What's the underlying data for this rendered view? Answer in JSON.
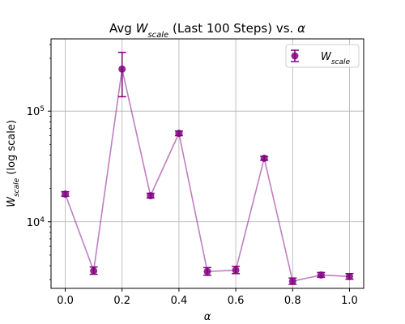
{
  "chart_data": {
    "type": "line",
    "title": "Avg W_scale (Last 100 Steps) vs. α",
    "title_parts": {
      "prefix": "Avg ",
      "var": "W",
      "sub": "scale",
      "suffix": " (Last 100 Steps) vs. ",
      "alpha": "α"
    },
    "xlabel": "α",
    "ylabel_parts": {
      "var": "W",
      "sub": "scale",
      "suffix": " (log scale)"
    },
    "y_scale": "log",
    "xlim": [
      -0.05,
      1.05
    ],
    "ylim": [
      2500,
      450000
    ],
    "x_ticks": [
      0.0,
      0.2,
      0.4,
      0.6,
      0.8,
      1.0
    ],
    "x_tick_labels": [
      "0.0",
      "0.2",
      "0.4",
      "0.6",
      "0.8",
      "1.0"
    ],
    "y_ticks": [
      10000,
      100000
    ],
    "y_tick_labels": [
      {
        "base": "10",
        "exp": "4"
      },
      {
        "base": "10",
        "exp": "5"
      }
    ],
    "grid": true,
    "legend": {
      "position": "top-right",
      "label_var": "W",
      "label_sub": "scale"
    },
    "series": [
      {
        "name": "W_scale",
        "color": "#800080",
        "x": [
          0.0,
          0.1,
          0.2,
          0.3,
          0.4,
          0.5,
          0.6,
          0.7,
          0.8,
          0.9,
          1.0
        ],
        "y": [
          17800,
          3600,
          240000,
          17200,
          63000,
          3550,
          3650,
          37500,
          2900,
          3300,
          3200
        ],
        "err_low": [
          17000,
          3350,
          135000,
          16400,
          60000,
          3280,
          3400,
          36000,
          2720,
          3150,
          3020
        ],
        "err_high": [
          18700,
          3900,
          340000,
          18100,
          66000,
          3850,
          3950,
          39000,
          3100,
          3480,
          3400
        ]
      }
    ]
  }
}
